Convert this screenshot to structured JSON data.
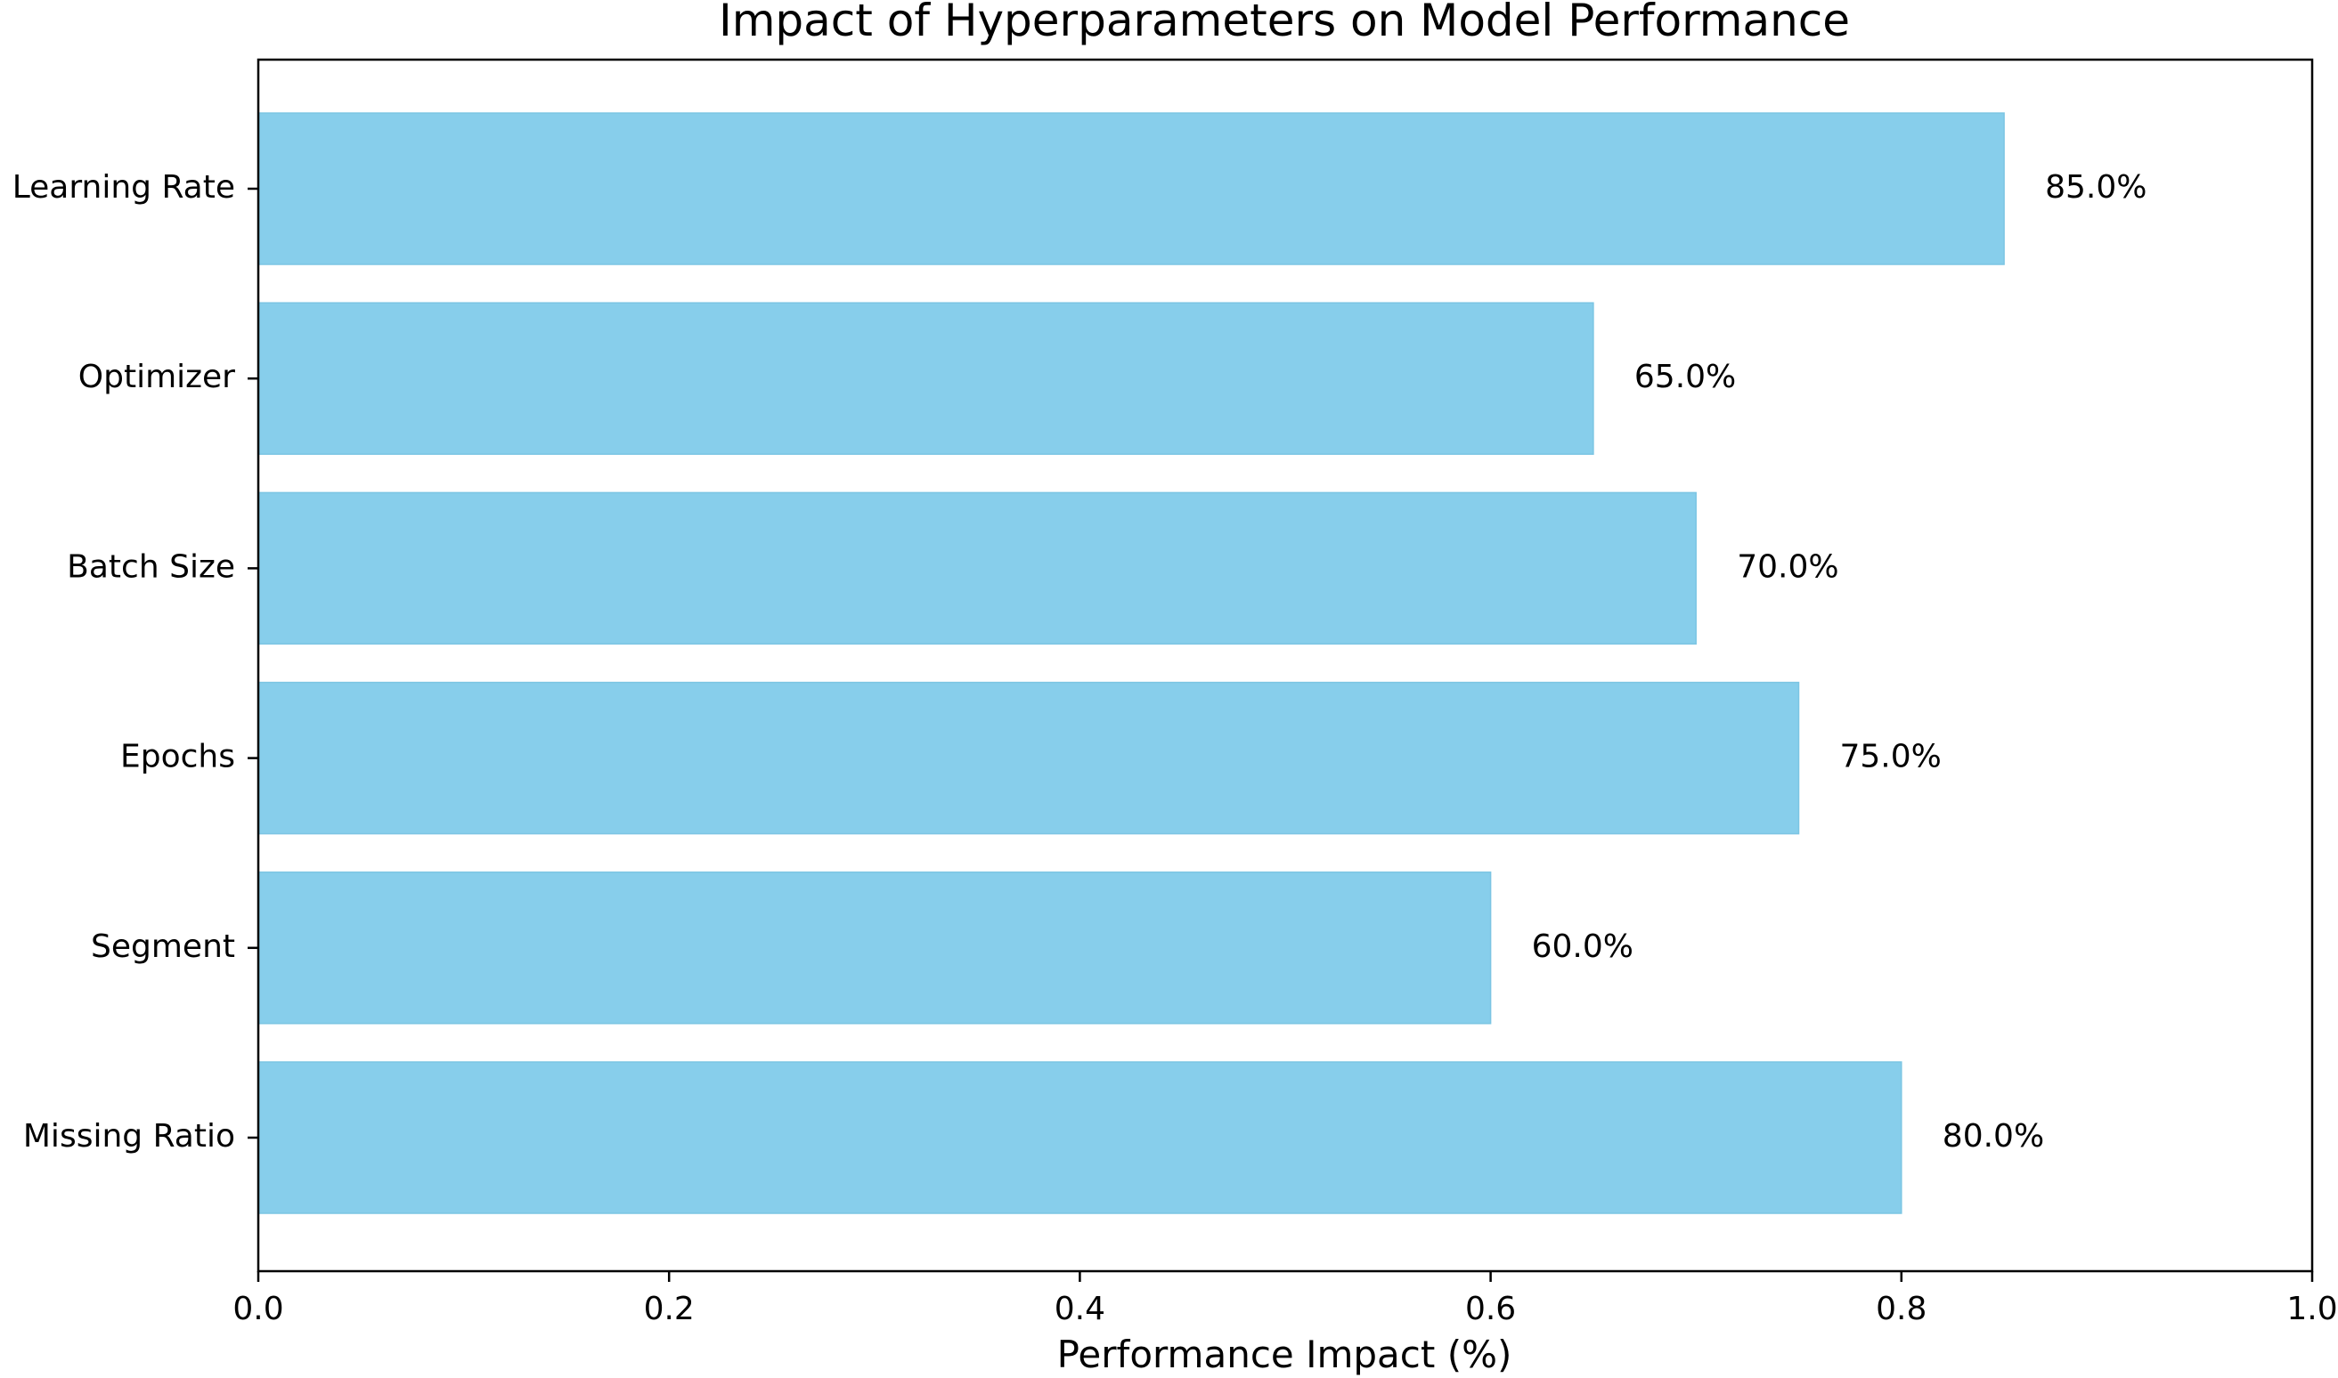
{
  "chart_data": {
    "type": "bar",
    "orientation": "horizontal",
    "title": "Impact of Hyperparameters on Model Performance",
    "xlabel": "Performance Impact (%)",
    "ylabel": "",
    "xlim": [
      0,
      1
    ],
    "xticks": [
      "0.0",
      "0.2",
      "0.4",
      "0.6",
      "0.8",
      "1.0"
    ],
    "categories": [
      "Learning Rate",
      "Optimizer",
      "Batch Size",
      "Epochs",
      "Segment",
      "Missing Ratio"
    ],
    "values": [
      0.85,
      0.65,
      0.7,
      0.75,
      0.6,
      0.8
    ],
    "data_labels": [
      "85.0%",
      "65.0%",
      "70.0%",
      "75.0%",
      "60.0%",
      "80.0%"
    ],
    "bar_color": "#87CEEB",
    "grid": false,
    "legend": "none"
  }
}
